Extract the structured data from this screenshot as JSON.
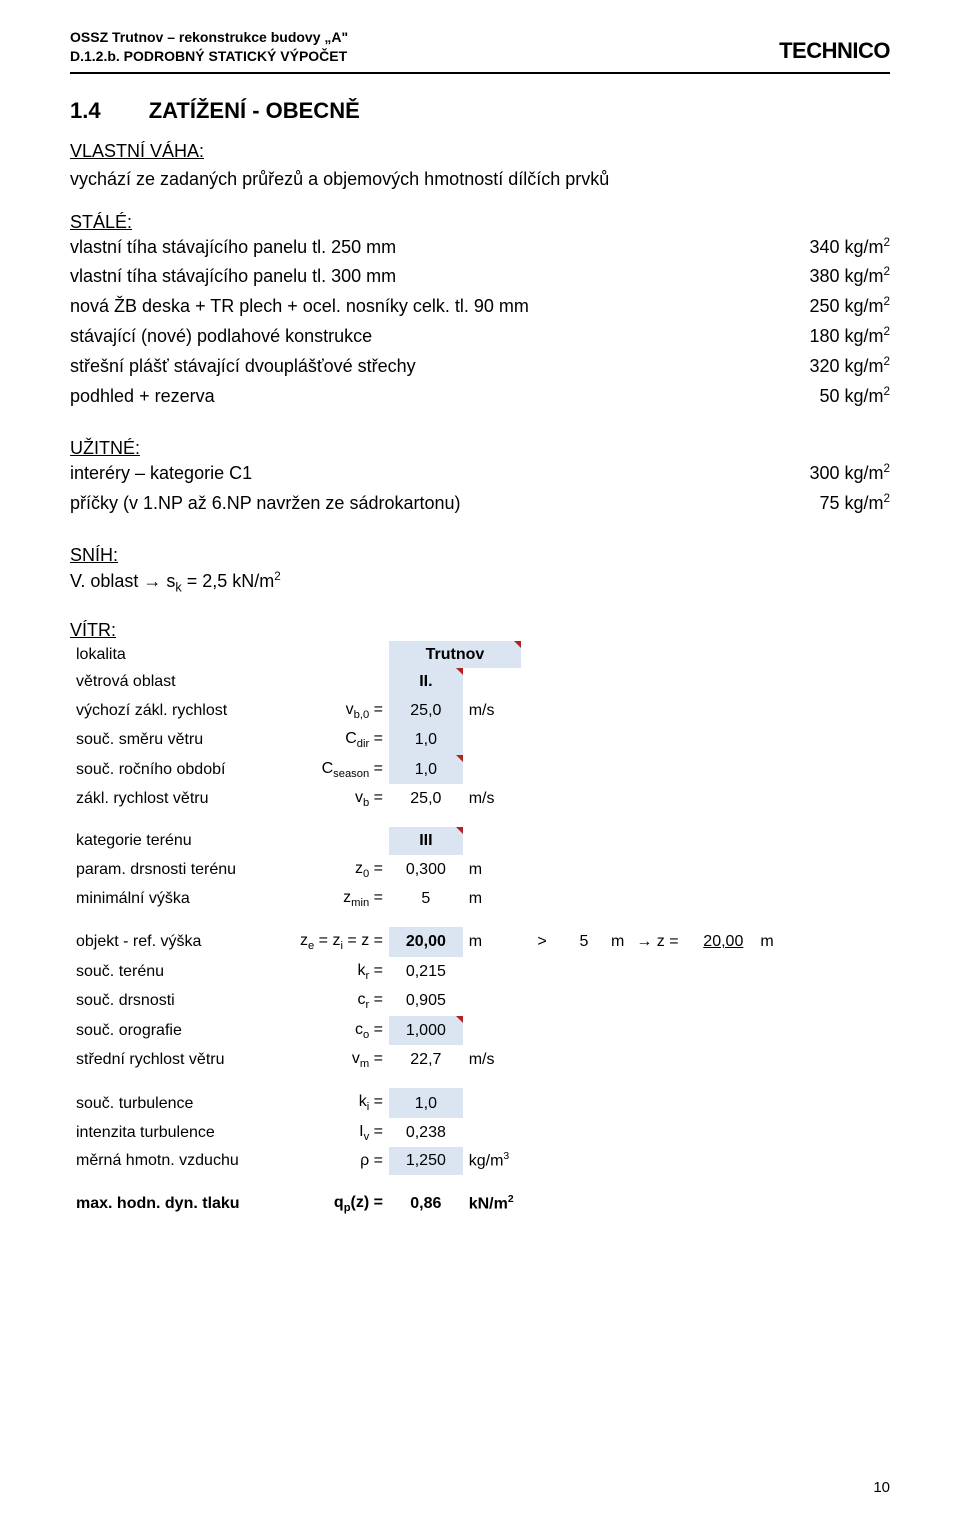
{
  "header": {
    "line1": "OSSZ Trutnov – rekonstrukce budovy „A\"",
    "line2": "D.1.2.b. PODROBNÝ STATICKÝ VÝPOČET",
    "brand": "TECHNICO"
  },
  "section": {
    "number": "1.4",
    "title": "ZATÍŽENÍ - OBECNĚ"
  },
  "vlastni_vaha": {
    "heading": "VLASTNÍ VÁHA:",
    "intro": "vychází ze zadaných průřezů a objemových hmotností dílčích prvků"
  },
  "stale": {
    "heading": "STÁLÉ:",
    "rows": [
      {
        "label": "vlastní tíha stávajícího panelu tl. 250 mm",
        "value": "340 kg/m",
        "sup": "2"
      },
      {
        "label": "vlastní tíha stávajícího panelu tl. 300 mm",
        "value": "380 kg/m",
        "sup": "2"
      },
      {
        "label": "nová ŽB deska + TR plech + ocel. nosníky celk. tl. 90 mm",
        "value": "250 kg/m",
        "sup": "2"
      },
      {
        "label": "stávající (nové) podlahové konstrukce",
        "value": "180 kg/m",
        "sup": "2"
      },
      {
        "label": "střešní plášť stávající dvouplášťové střechy",
        "value": "320 kg/m",
        "sup": "2"
      },
      {
        "label": "podhled + rezerva",
        "value": "50 kg/m",
        "sup": "2"
      }
    ]
  },
  "uzitne": {
    "heading": "UŽITNÉ:",
    "rows": [
      {
        "label": "interéry – kategorie C1",
        "value": "300 kg/m",
        "sup": "2"
      },
      {
        "label": "příčky (v 1.NP až 6.NP navržen ze sádrokartonu)",
        "value": "75 kg/m",
        "sup": "2"
      }
    ]
  },
  "snih": {
    "heading": "SNÍH:",
    "line_prefix": "V. oblast → s",
    "line_sub": "k",
    "line_mid": " = 2,5 kN/m",
    "line_sup": "2"
  },
  "vitr": {
    "heading": "VÍTR:",
    "lokalita": {
      "label": "lokalita",
      "value": "Trutnov"
    },
    "oblast": {
      "label": "větrová oblast",
      "value": "II."
    },
    "vb0": {
      "label": "výchozí zákl. rychlost",
      "sym": "v_b,0 =",
      "value": "25,0",
      "unit": "m/s"
    },
    "cdir": {
      "label": "souč. směru větru",
      "sym": "C_dir =",
      "value": "1,0",
      "unit": ""
    },
    "cseason": {
      "label": "souč. ročního období",
      "sym": "C_season =",
      "value": "1,0",
      "unit": ""
    },
    "vb": {
      "label": "zákl. rychlost větru",
      "sym": "v_b =",
      "value": "25,0",
      "unit": "m/s"
    },
    "kat": {
      "label": "kategorie terénu",
      "value": "III"
    },
    "z0": {
      "label": "param. drsnosti terénu",
      "sym": "z_0 =",
      "value": "0,300",
      "unit": "m"
    },
    "zmin": {
      "label": "minimální výška",
      "sym": "z_min =",
      "value": "5",
      "unit": "m"
    },
    "objekt": {
      "label": "objekt - ref. výška",
      "sym": "z_e = z_i = z =",
      "value": "20,00",
      "unit": "m",
      "gt": ">",
      "cmp_val": "5",
      "cmp_unit": "m",
      "arrow": "→",
      "z_eq": "z =",
      "z_res": "20,00",
      "z_res_unit": "m"
    },
    "kr": {
      "label": "souč. terénu",
      "sym": "k_r =",
      "value": "0,215"
    },
    "cr": {
      "label": "souč. drsnosti",
      "sym": "c_r =",
      "value": "0,905"
    },
    "co": {
      "label": "souč. orografie",
      "sym": "c_o =",
      "value": "1,000"
    },
    "vm": {
      "label": "střední rychlost větru",
      "sym": "v_m =",
      "value": "22,7",
      "unit": "m/s"
    },
    "ki": {
      "label": "souč. turbulence",
      "sym": "k_i =",
      "value": "1,0"
    },
    "iv": {
      "label": "intenzita turbulence",
      "sym": "I_v =",
      "value": "0,238"
    },
    "rho": {
      "label": "měrná hmotn. vzduchu",
      "sym": "ρ =",
      "value": "1,250",
      "unit": "kg/m",
      "unit_sup": "3"
    },
    "qp": {
      "label": "max. hodn. dyn. tlaku",
      "sym": "q_p(z) =",
      "value": "0,86",
      "unit": "kN/m",
      "unit_sup": "2"
    }
  },
  "page_number": "10",
  "style": {
    "highlight_bg": "#dbe5f1",
    "triangle_color": "#b22222"
  }
}
